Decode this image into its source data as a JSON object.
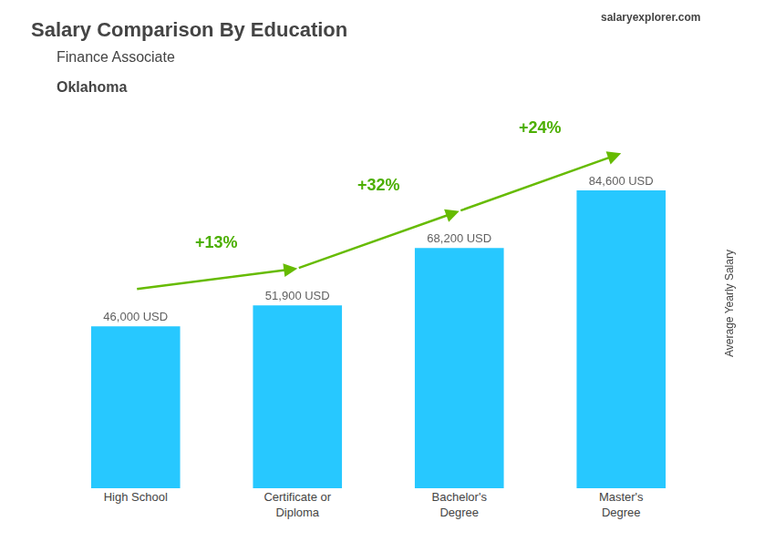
{
  "chart_data": {
    "type": "bar",
    "title": "Salary Comparison By Education",
    "subtitle": [
      "Finance Associate",
      "Oklahoma"
    ],
    "source": "salaryexplorer.com",
    "ylabel": "Average Yearly Salary",
    "categories": [
      "High School",
      "Certificate or\nDiploma",
      "Bachelor's\nDegree",
      "Master's\nDegree"
    ],
    "values": [
      46000,
      51900,
      68200,
      84600
    ],
    "value_labels": [
      "46,000 USD",
      "51,900 USD",
      "68,200 USD",
      "84,600 USD"
    ],
    "data_labels": true,
    "annotations": [
      "+13%",
      "+32%",
      "+24%"
    ],
    "color": "#00bfff",
    "ylim": [
      0,
      105000
    ],
    "grid": false,
    "tick_labels": "x"
  }
}
